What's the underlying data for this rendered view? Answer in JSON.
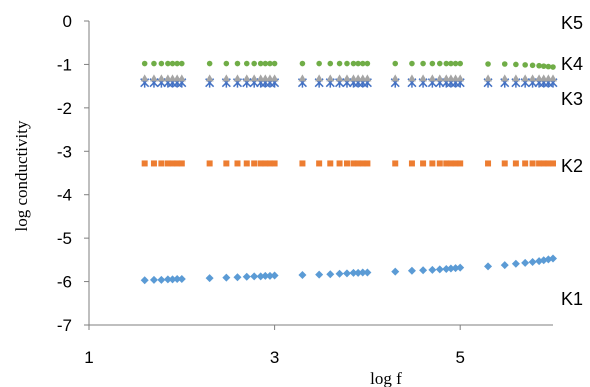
{
  "chart_data": {
    "type": "scatter",
    "xlabel": "log f",
    "ylabel": "log conductivity",
    "xlim": [
      1,
      6
    ],
    "ylim": [
      -7,
      0
    ],
    "xticks": [
      "1",
      "3",
      "5"
    ],
    "yticks": [
      "0",
      "-1",
      "-2",
      "-3",
      "-4",
      "-5",
      "-6",
      "-7"
    ],
    "grid": false,
    "x": [
      1.6,
      1.7,
      1.78,
      1.85,
      1.9,
      1.95,
      2.0,
      2.3,
      2.48,
      2.6,
      2.7,
      2.78,
      2.85,
      2.9,
      2.95,
      3.0,
      3.3,
      3.48,
      3.6,
      3.7,
      3.78,
      3.85,
      3.9,
      3.95,
      4.0,
      4.3,
      4.48,
      4.6,
      4.7,
      4.78,
      4.85,
      4.9,
      4.95,
      5.0,
      5.3,
      5.48,
      5.6,
      5.7,
      5.78,
      5.85,
      5.9,
      5.95,
      6.0
    ],
    "series": [
      {
        "name": "K1",
        "color": "#5b9bd5",
        "marker": "diamond",
        "values": [
          -5.97,
          -5.96,
          -5.96,
          -5.95,
          -5.95,
          -5.94,
          -5.94,
          -5.92,
          -5.91,
          -5.9,
          -5.89,
          -5.88,
          -5.88,
          -5.87,
          -5.87,
          -5.86,
          -5.85,
          -5.84,
          -5.83,
          -5.82,
          -5.81,
          -5.8,
          -5.8,
          -5.79,
          -5.79,
          -5.77,
          -5.75,
          -5.74,
          -5.73,
          -5.72,
          -5.71,
          -5.7,
          -5.69,
          -5.68,
          -5.65,
          -5.62,
          -5.59,
          -5.57,
          -5.55,
          -5.53,
          -5.51,
          -5.49,
          -5.47
        ]
      },
      {
        "name": "K2",
        "color": "#ed7d31",
        "marker": "square",
        "values": [
          -3.28,
          -3.28,
          -3.28,
          -3.28,
          -3.28,
          -3.28,
          -3.28,
          -3.28,
          -3.28,
          -3.28,
          -3.28,
          -3.28,
          -3.28,
          -3.28,
          -3.28,
          -3.28,
          -3.28,
          -3.28,
          -3.28,
          -3.28,
          -3.28,
          -3.28,
          -3.28,
          -3.28,
          -3.28,
          -3.28,
          -3.28,
          -3.28,
          -3.28,
          -3.28,
          -3.28,
          -3.28,
          -3.28,
          -3.28,
          -3.28,
          -3.28,
          -3.28,
          -3.28,
          -3.28,
          -3.28,
          -3.28,
          -3.28,
          -3.28
        ]
      },
      {
        "name": "K3",
        "color": "#4472c4",
        "marker": "x",
        "values": [
          -1.42,
          -1.42,
          -1.42,
          -1.42,
          -1.42,
          -1.42,
          -1.42,
          -1.42,
          -1.42,
          -1.42,
          -1.42,
          -1.42,
          -1.42,
          -1.42,
          -1.42,
          -1.42,
          -1.42,
          -1.42,
          -1.42,
          -1.42,
          -1.42,
          -1.42,
          -1.42,
          -1.42,
          -1.42,
          -1.42,
          -1.42,
          -1.42,
          -1.42,
          -1.42,
          -1.42,
          -1.42,
          -1.42,
          -1.42,
          -1.42,
          -1.42,
          -1.42,
          -1.42,
          -1.42,
          -1.42,
          -1.42,
          -1.42,
          -1.42
        ]
      },
      {
        "name": "K4",
        "color": "#a5a5a5",
        "marker": "triangle",
        "values": [
          -1.32,
          -1.32,
          -1.32,
          -1.32,
          -1.32,
          -1.32,
          -1.32,
          -1.32,
          -1.32,
          -1.32,
          -1.32,
          -1.32,
          -1.32,
          -1.32,
          -1.32,
          -1.32,
          -1.32,
          -1.32,
          -1.32,
          -1.32,
          -1.32,
          -1.32,
          -1.32,
          -1.32,
          -1.32,
          -1.32,
          -1.32,
          -1.32,
          -1.32,
          -1.32,
          -1.32,
          -1.32,
          -1.32,
          -1.32,
          -1.32,
          -1.32,
          -1.32,
          -1.32,
          -1.32,
          -1.32,
          -1.32,
          -1.32,
          -1.32
        ]
      },
      {
        "name": "K5",
        "color": "#70ad47",
        "marker": "circle",
        "values": [
          -0.98,
          -0.98,
          -0.98,
          -0.98,
          -0.98,
          -0.98,
          -0.98,
          -0.98,
          -0.98,
          -0.98,
          -0.98,
          -0.98,
          -0.98,
          -0.98,
          -0.98,
          -0.98,
          -0.98,
          -0.98,
          -0.98,
          -0.98,
          -0.98,
          -0.98,
          -0.98,
          -0.98,
          -0.98,
          -0.98,
          -0.98,
          -0.98,
          -0.98,
          -0.98,
          -0.98,
          -0.98,
          -0.98,
          -0.98,
          -0.99,
          -0.99,
          -1.0,
          -1.01,
          -1.02,
          -1.03,
          -1.04,
          -1.05,
          -1.06
        ]
      }
    ]
  }
}
